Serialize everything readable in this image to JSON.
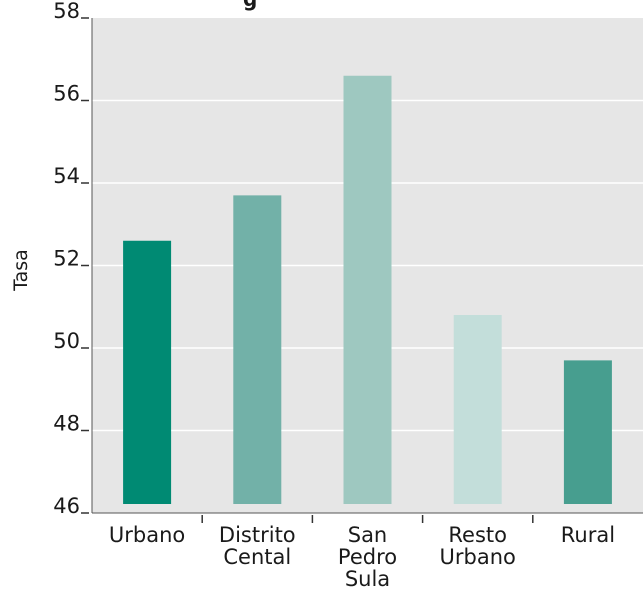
{
  "chart_data": {
    "type": "bar",
    "title_fragment": "g",
    "ylabel": "Tasa",
    "xlabel": "",
    "ylim": [
      46,
      58
    ],
    "yticks": [
      46,
      48,
      50,
      52,
      54,
      56,
      58
    ],
    "ytick_labels": [
      "46",
      "48",
      "50",
      "52",
      "54",
      "56",
      "58"
    ],
    "categories": [
      "Urbano",
      "Distrito Cental",
      "San Pedro Sula",
      "Resto Urbano",
      "Rural"
    ],
    "category_label_lines": [
      [
        "Urbano"
      ],
      [
        "Distrito",
        "Cental"
      ],
      [
        "San",
        "Pedro",
        "Sula"
      ],
      [
        "Resto",
        "Urbano"
      ],
      [
        "Rural"
      ]
    ],
    "values": [
      52.6,
      53.7,
      56.6,
      50.8,
      49.7
    ],
    "colors": [
      "#008a73",
      "#72b1a8",
      "#9ec8c0",
      "#c3deda",
      "#479e8f"
    ],
    "grid": true,
    "plot_background": "#e6e6e6",
    "gridline_color": "#ffffff"
  }
}
